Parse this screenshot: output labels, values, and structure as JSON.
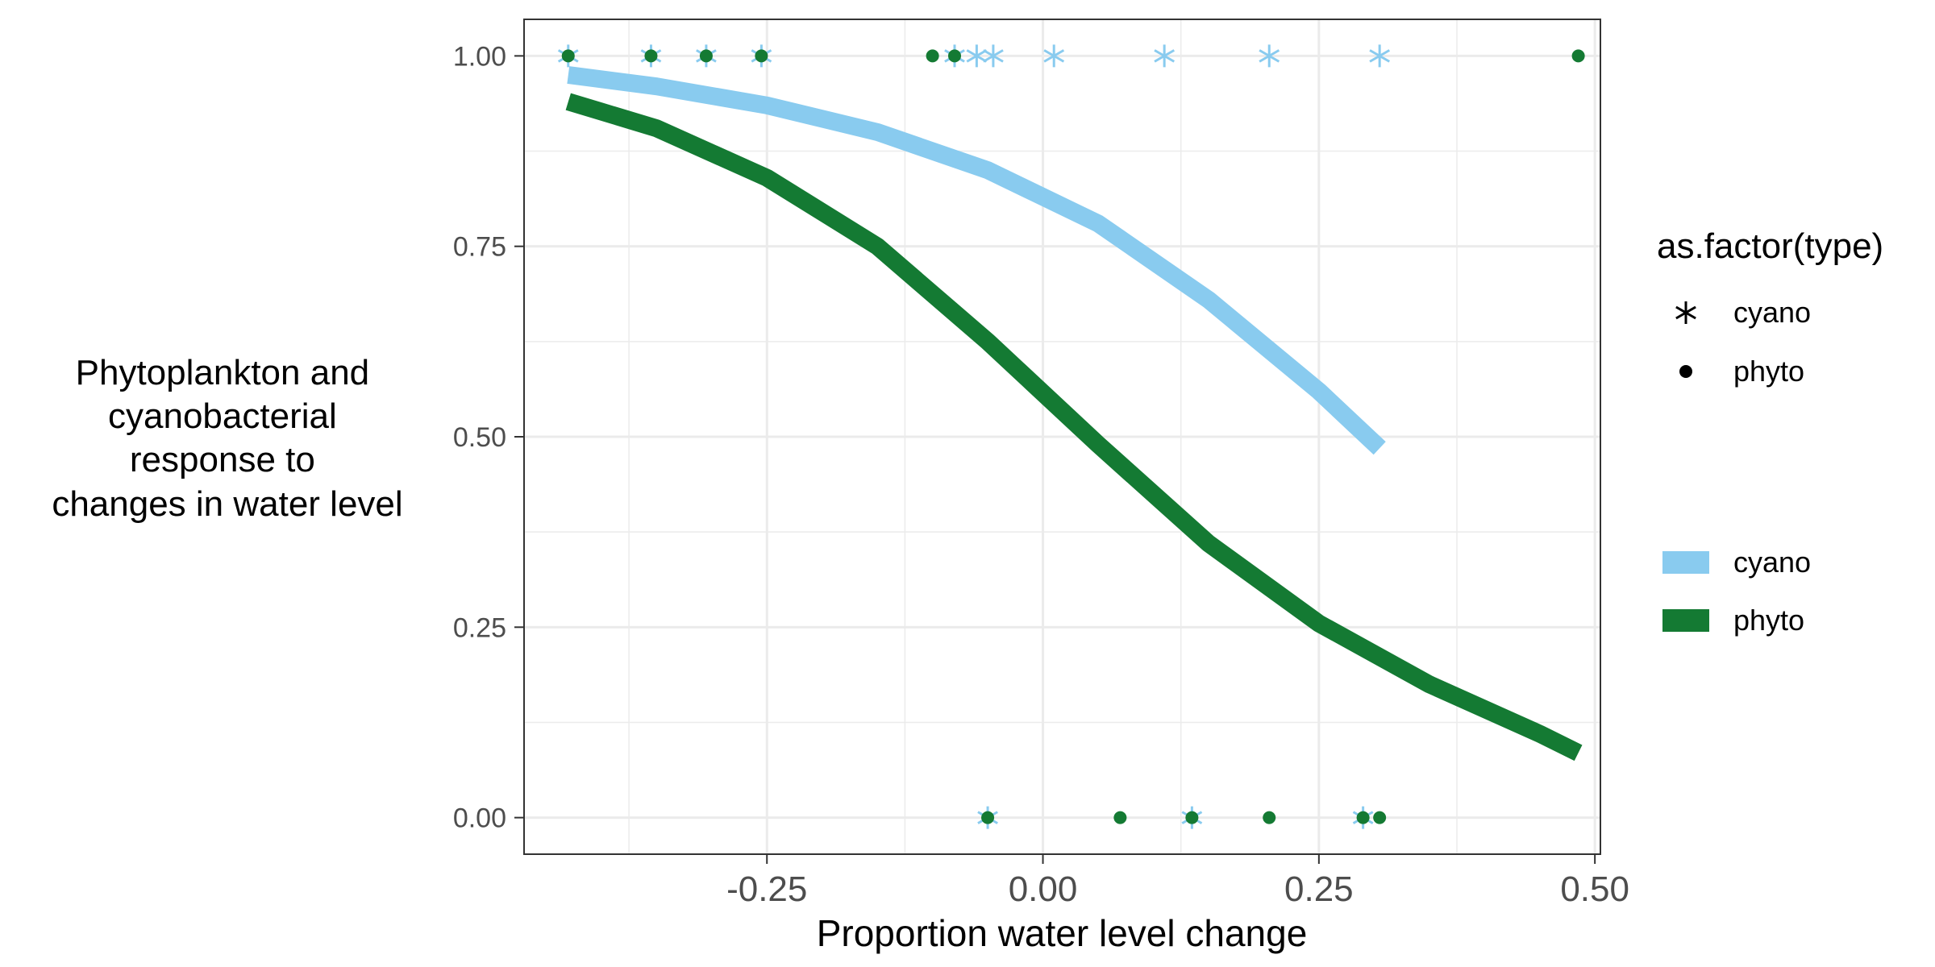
{
  "chart_data": {
    "type": "scatter",
    "xlabel": "Proportion water level change",
    "ylabel_lines": [
      "Phytoplankton and",
      "cyanobacterial",
      "response to",
      "changes in water level"
    ],
    "xlim": [
      -0.47,
      0.505
    ],
    "ylim": [
      -0.048,
      1.048
    ],
    "x_ticks": [
      -0.25,
      0.0,
      0.25,
      0.5
    ],
    "x_tick_labels": [
      "-0.25",
      "0.00",
      "0.25",
      "0.50"
    ],
    "x_minor": [
      -0.375,
      -0.125,
      0.125,
      0.375
    ],
    "y_ticks": [
      0.0,
      0.25,
      0.5,
      0.75,
      1.0
    ],
    "y_tick_labels": [
      "0.00",
      "0.25",
      "0.50",
      "0.75",
      "1.00"
    ],
    "y_minor": [
      0.125,
      0.375,
      0.625,
      0.875
    ],
    "grid": true,
    "legend_position": "right",
    "colors": {
      "cyano": "#89cbef",
      "phyto": "#147a33"
    },
    "legend_shape": {
      "title": "as.factor(type)",
      "items": [
        {
          "label": "cyano",
          "shape": "asterisk"
        },
        {
          "label": "phyto",
          "shape": "dot"
        }
      ]
    },
    "legend_line": {
      "items": [
        {
          "label": "cyano",
          "key": "cyano"
        },
        {
          "label": "phyto",
          "key": "phyto"
        }
      ]
    },
    "points": {
      "cyano": [
        {
          "x": -0.43,
          "y": 1
        },
        {
          "x": -0.355,
          "y": 1
        },
        {
          "x": -0.305,
          "y": 1
        },
        {
          "x": -0.255,
          "y": 1
        },
        {
          "x": -0.08,
          "y": 1
        },
        {
          "x": -0.06,
          "y": 1
        },
        {
          "x": -0.045,
          "y": 1
        },
        {
          "x": 0.01,
          "y": 1
        },
        {
          "x": 0.11,
          "y": 1
        },
        {
          "x": 0.205,
          "y": 1
        },
        {
          "x": 0.305,
          "y": 1
        },
        {
          "x": -0.05,
          "y": 0
        },
        {
          "x": 0.135,
          "y": 0
        },
        {
          "x": 0.29,
          "y": 0
        }
      ],
      "phyto": [
        {
          "x": -0.43,
          "y": 1
        },
        {
          "x": -0.355,
          "y": 1
        },
        {
          "x": -0.305,
          "y": 1
        },
        {
          "x": -0.255,
          "y": 1
        },
        {
          "x": -0.1,
          "y": 1
        },
        {
          "x": -0.08,
          "y": 1
        },
        {
          "x": 0.485,
          "y": 1
        },
        {
          "x": -0.05,
          "y": 0
        },
        {
          "x": 0.07,
          "y": 0
        },
        {
          "x": 0.135,
          "y": 0
        },
        {
          "x": 0.205,
          "y": 0
        },
        {
          "x": 0.29,
          "y": 0
        },
        {
          "x": 0.305,
          "y": 0
        }
      ]
    },
    "series": [
      {
        "key": "cyano",
        "x": [
          -0.43,
          -0.35,
          -0.25,
          -0.15,
          -0.05,
          0.05,
          0.15,
          0.25,
          0.305
        ],
        "y": [
          0.975,
          0.96,
          0.935,
          0.9,
          0.85,
          0.78,
          0.68,
          0.56,
          0.485
        ]
      },
      {
        "key": "phyto",
        "x": [
          -0.43,
          -0.35,
          -0.25,
          -0.15,
          -0.05,
          0.05,
          0.15,
          0.25,
          0.35,
          0.45,
          0.485
        ],
        "y": [
          0.94,
          0.905,
          0.84,
          0.75,
          0.625,
          0.49,
          0.36,
          0.255,
          0.175,
          0.11,
          0.085
        ]
      }
    ]
  }
}
